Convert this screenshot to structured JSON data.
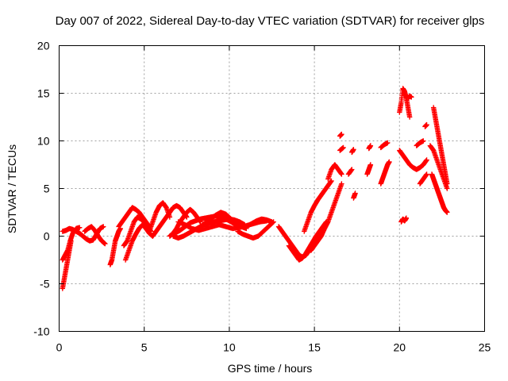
{
  "chart_data": {
    "type": "scatter",
    "title": "Day 007 of 2022, Sidereal Day-to-day VTEC variation (SDTVAR) for receiver glps",
    "xlabel": "GPS time / hours",
    "ylabel": "SDTVAR / TECUs",
    "xlim": [
      0,
      25
    ],
    "ylim": [
      -10,
      20
    ],
    "xticks": [
      0,
      5,
      10,
      15,
      20,
      25
    ],
    "yticks": [
      -10,
      -5,
      0,
      5,
      10,
      15,
      20
    ],
    "xtick_labels": [
      "0",
      "5",
      "10",
      "15",
      "20",
      "25"
    ],
    "ytick_labels": [
      "-10",
      "-5",
      "0",
      "5",
      "10",
      "15",
      "20"
    ],
    "grid": true,
    "marker": "plus",
    "color": "#ff0000",
    "series_segments": [
      {
        "x": [
          0.2,
          0.3,
          0.4,
          0.5,
          0.6,
          0.7
        ],
        "y": [
          -5.5,
          -4.5,
          -3.5,
          -2.5,
          -1.5,
          -0.5
        ]
      },
      {
        "x": [
          0.2,
          0.35,
          0.5,
          0.65,
          0.8,
          1.0,
          1.2
        ],
        "y": [
          -2.5,
          -2.0,
          -1.5,
          -0.5,
          0.3,
          0.8,
          0.9
        ]
      },
      {
        "x": [
          0.2,
          0.4,
          0.6,
          0.8,
          1.0,
          1.2,
          1.4,
          1.6,
          1.8,
          2.0,
          2.2,
          2.4,
          2.6
        ],
        "y": [
          0.5,
          0.6,
          0.8,
          0.7,
          0.5,
          0.3,
          0.0,
          -0.3,
          -0.5,
          -0.4,
          0.2,
          0.8,
          1.0
        ]
      },
      {
        "x": [
          1.5,
          1.7,
          1.9,
          2.1,
          2.3,
          2.5,
          2.7
        ],
        "y": [
          0.5,
          0.8,
          1.0,
          0.6,
          0.0,
          -0.5,
          -0.8
        ]
      },
      {
        "x": [
          3.0,
          3.1,
          3.2,
          3.3,
          3.4,
          3.5,
          3.6
        ],
        "y": [
          -3.0,
          -2.5,
          -1.5,
          -0.5,
          0.0,
          0.5,
          0.8
        ]
      },
      {
        "x": [
          3.5,
          3.7,
          3.9,
          4.1,
          4.3,
          4.5,
          4.7,
          4.9,
          5.1,
          5.3
        ],
        "y": [
          1.0,
          1.5,
          2.0,
          2.5,
          3.0,
          2.8,
          2.5,
          2.0,
          1.5,
          1.0
        ]
      },
      {
        "x": [
          3.8,
          4.0,
          4.2,
          4.4,
          4.6,
          4.8,
          5.0,
          5.2,
          5.4
        ],
        "y": [
          -1.0,
          -0.5,
          0.5,
          1.5,
          2.0,
          1.8,
          1.5,
          1.0,
          0.5
        ]
      },
      {
        "x": [
          3.9,
          4.1,
          4.3,
          4.5,
          4.7,
          4.9,
          5.1,
          5.3,
          5.5
        ],
        "y": [
          -2.5,
          -1.5,
          -0.5,
          0.2,
          0.8,
          1.2,
          0.8,
          0.3,
          0.0
        ]
      },
      {
        "x": [
          5.3,
          5.5,
          5.7,
          5.9,
          6.1,
          6.3,
          6.5
        ],
        "y": [
          0.5,
          1.5,
          2.5,
          3.2,
          3.5,
          3.0,
          2.0
        ]
      },
      {
        "x": [
          5.5,
          5.7,
          5.9,
          6.1,
          6.3,
          6.5,
          6.7,
          6.9,
          7.1,
          7.3,
          7.5
        ],
        "y": [
          0.0,
          0.5,
          1.0,
          1.5,
          2.0,
          2.5,
          3.0,
          3.2,
          3.0,
          2.5,
          2.0
        ]
      },
      {
        "x": [
          6.5,
          6.7,
          6.9,
          7.1,
          7.3,
          7.5,
          7.7,
          7.9,
          8.1,
          8.3
        ],
        "y": [
          0.0,
          0.3,
          0.8,
          1.5,
          2.0,
          2.5,
          2.8,
          2.5,
          2.0,
          1.5
        ]
      },
      {
        "x": [
          6.7,
          7.0,
          7.3,
          7.6,
          7.9,
          8.2,
          8.5,
          8.8,
          9.1,
          9.4,
          9.7,
          10.0,
          10.3,
          10.6,
          10.9
        ],
        "y": [
          0.0,
          -0.2,
          0.0,
          0.3,
          0.6,
          0.9,
          1.2,
          1.4,
          1.5,
          1.6,
          1.7,
          1.8,
          1.7,
          1.5,
          1.2
        ]
      },
      {
        "x": [
          6.8,
          7.1,
          7.4,
          7.7,
          8.0,
          8.3,
          8.6,
          8.9,
          9.2,
          9.5,
          9.8,
          10.1,
          10.4,
          10.7,
          11.0
        ],
        "y": [
          0.3,
          0.6,
          1.0,
          1.4,
          1.6,
          1.8,
          1.9,
          2.0,
          2.1,
          2.0,
          1.8,
          1.5,
          1.2,
          1.0,
          0.8
        ]
      },
      {
        "x": [
          7.0,
          7.4,
          7.8,
          8.2,
          8.6,
          9.0,
          9.4,
          9.8,
          10.2,
          10.6,
          11.0,
          11.4,
          11.8,
          12.2
        ],
        "y": [
          1.5,
          1.2,
          0.8,
          0.6,
          0.8,
          1.0,
          1.2,
          1.0,
          0.8,
          0.9,
          1.1,
          1.3,
          1.5,
          1.6
        ]
      },
      {
        "x": [
          8.3,
          8.6,
          8.9,
          9.2,
          9.5,
          9.8,
          10.1,
          10.4
        ],
        "y": [
          1.0,
          1.4,
          1.8,
          2.2,
          2.5,
          2.3,
          1.8,
          1.2
        ]
      },
      {
        "x": [
          10.5,
          10.8,
          11.1,
          11.4,
          11.7,
          12.0,
          12.3,
          12.6
        ],
        "y": [
          0.5,
          0.2,
          0.0,
          -0.2,
          0.0,
          0.5,
          1.0,
          1.5
        ]
      },
      {
        "x": [
          11.0,
          11.3,
          11.6,
          11.9,
          12.2,
          12.5
        ],
        "y": [
          1.0,
          1.3,
          1.6,
          1.8,
          1.7,
          1.5
        ]
      },
      {
        "x": [
          12.9,
          13.1,
          13.3,
          13.5,
          13.7,
          13.9,
          14.1,
          14.3,
          14.5,
          14.7,
          14.9,
          15.1,
          15.3,
          15.5
        ],
        "y": [
          1.0,
          0.5,
          0.0,
          -0.5,
          -1.0,
          -1.5,
          -2.0,
          -2.2,
          -2.0,
          -1.5,
          -1.0,
          -0.5,
          0.0,
          0.5
        ]
      },
      {
        "x": [
          13.5,
          13.7,
          13.9,
          14.1,
          14.3,
          14.5,
          14.7,
          14.9,
          15.1,
          15.3,
          15.5,
          15.7
        ],
        "y": [
          -1.0,
          -1.5,
          -2.0,
          -2.5,
          -2.3,
          -1.8,
          -1.2,
          -0.6,
          0.0,
          0.5,
          1.0,
          1.5
        ]
      },
      {
        "x": [
          14.4,
          14.6,
          14.8,
          15.0,
          15.2,
          15.4,
          15.6,
          15.8,
          16.0
        ],
        "y": [
          0.5,
          1.5,
          2.5,
          3.2,
          3.8,
          4.3,
          4.8,
          5.3,
          5.8
        ]
      },
      {
        "x": [
          14.8,
          15.0,
          15.2,
          15.4,
          15.6,
          15.8,
          16.0,
          16.2,
          16.4,
          16.6
        ],
        "y": [
          -1.5,
          -1.0,
          -0.5,
          0.0,
          0.8,
          1.5,
          2.5,
          3.5,
          4.5,
          5.5
        ]
      },
      {
        "x": [
          15.8,
          16.0,
          16.2,
          16.4,
          16.6
        ],
        "y": [
          6.0,
          7.0,
          7.5,
          7.0,
          6.5
        ]
      },
      {
        "x": [
          16.5,
          16.6
        ],
        "y": [
          10.5,
          10.7
        ]
      },
      {
        "x": [
          16.5,
          16.7
        ],
        "y": [
          9.0,
          9.3
        ]
      },
      {
        "x": [
          17.2,
          17.3
        ],
        "y": [
          8.8,
          9.1
        ]
      },
      {
        "x": [
          17.0,
          17.2
        ],
        "y": [
          6.5,
          7.0
        ]
      },
      {
        "x": [
          17.3,
          17.4
        ],
        "y": [
          4.0,
          4.5
        ]
      },
      {
        "x": [
          18.2,
          18.3
        ],
        "y": [
          9.2,
          9.5
        ]
      },
      {
        "x": [
          18.1,
          18.2,
          18.3
        ],
        "y": [
          6.5,
          7.0,
          7.5
        ]
      },
      {
        "x": [
          18.9,
          19.0,
          19.1,
          19.2,
          19.3,
          19.4
        ],
        "y": [
          5.5,
          6.0,
          6.5,
          7.0,
          7.5,
          7.8
        ]
      },
      {
        "x": [
          18.9,
          19.1,
          19.3
        ],
        "y": [
          9.3,
          9.6,
          9.8
        ]
      },
      {
        "x": [
          20.0,
          20.1,
          20.2,
          20.3,
          20.4,
          20.5,
          20.6
        ],
        "y": [
          13.0,
          14.0,
          15.5,
          15.2,
          14.5,
          13.5,
          12.5
        ]
      },
      {
        "x": [
          20.5,
          20.6,
          20.7
        ],
        "y": [
          14.5,
          14.7,
          14.6
        ]
      },
      {
        "x": [
          20.0,
          20.2,
          20.4,
          20.6,
          20.8,
          21.0,
          21.2,
          21.4,
          21.6
        ],
        "y": [
          9.0,
          8.5,
          8.0,
          7.5,
          7.2,
          7.0,
          7.2,
          7.5,
          8.0
        ]
      },
      {
        "x": [
          20.1,
          20.2,
          20.3,
          20.4
        ],
        "y": [
          1.5,
          1.8,
          1.6,
          1.9
        ]
      },
      {
        "x": [
          21.0,
          21.2,
          21.4
        ],
        "y": [
          9.5,
          9.8,
          10.0
        ]
      },
      {
        "x": [
          21.5,
          21.6
        ],
        "y": [
          11.5,
          11.7
        ]
      },
      {
        "x": [
          21.2,
          21.4,
          21.6
        ],
        "y": [
          5.5,
          6.0,
          6.5
        ]
      },
      {
        "x": [
          21.8,
          22.0,
          22.2,
          22.4,
          22.6,
          22.8
        ],
        "y": [
          9.5,
          9.0,
          8.0,
          7.0,
          6.0,
          5.0
        ]
      },
      {
        "x": [
          22.0,
          22.1,
          22.2,
          22.3,
          22.4,
          22.5,
          22.6,
          22.7,
          22.8
        ],
        "y": [
          13.5,
          12.5,
          11.5,
          10.5,
          9.5,
          8.5,
          7.5,
          6.5,
          5.5
        ]
      },
      {
        "x": [
          21.9,
          22.0,
          22.1,
          22.2,
          22.3,
          22.4,
          22.5,
          22.6,
          22.7,
          22.8
        ],
        "y": [
          6.5,
          6.0,
          5.5,
          5.0,
          4.5,
          4.0,
          3.5,
          3.0,
          2.7,
          2.5
        ]
      }
    ]
  }
}
